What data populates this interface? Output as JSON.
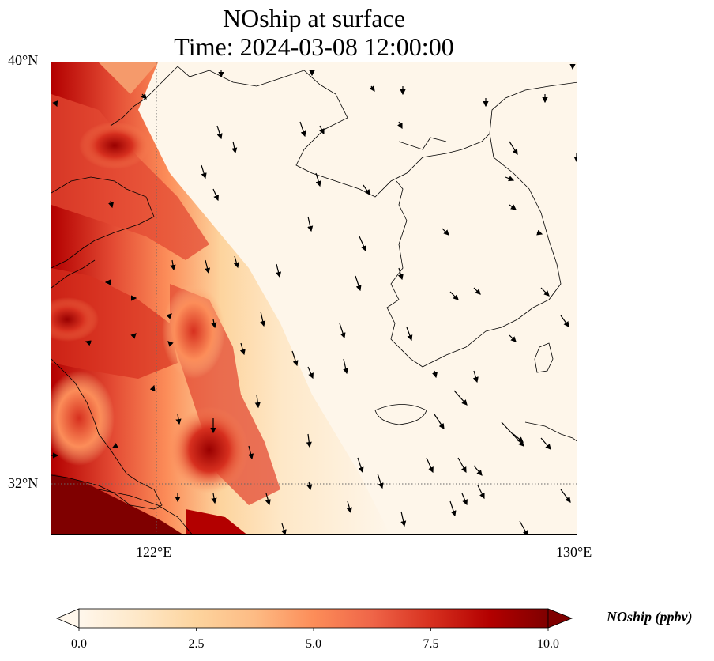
{
  "title": {
    "line1": "NOship at surface",
    "line2": "Time: 2024-03-08 12:00:00"
  },
  "map": {
    "lat_labels": [
      "40°N",
      "32°N"
    ],
    "lon_labels": [
      "122°E",
      "130°E"
    ],
    "lat_range": [
      31,
      40
    ],
    "lon_range": [
      120,
      130
    ],
    "gridlines": {
      "lats": [
        40,
        32
      ],
      "lons": [
        122,
        130
      ],
      "style": "dotted"
    },
    "colormap": "OrRd",
    "overlay": "wind vectors (arrows)"
  },
  "colorbar": {
    "title": "NOship (ppbv)",
    "ticks": [
      "0.0",
      "2.5",
      "5.0",
      "7.5",
      "10.0"
    ],
    "min": 0,
    "max": 10,
    "extend": "both"
  },
  "colors": {
    "low": "#fff7ec",
    "mid": "#fdd49e",
    "high": "#ef6548",
    "max": "#7f0000"
  }
}
